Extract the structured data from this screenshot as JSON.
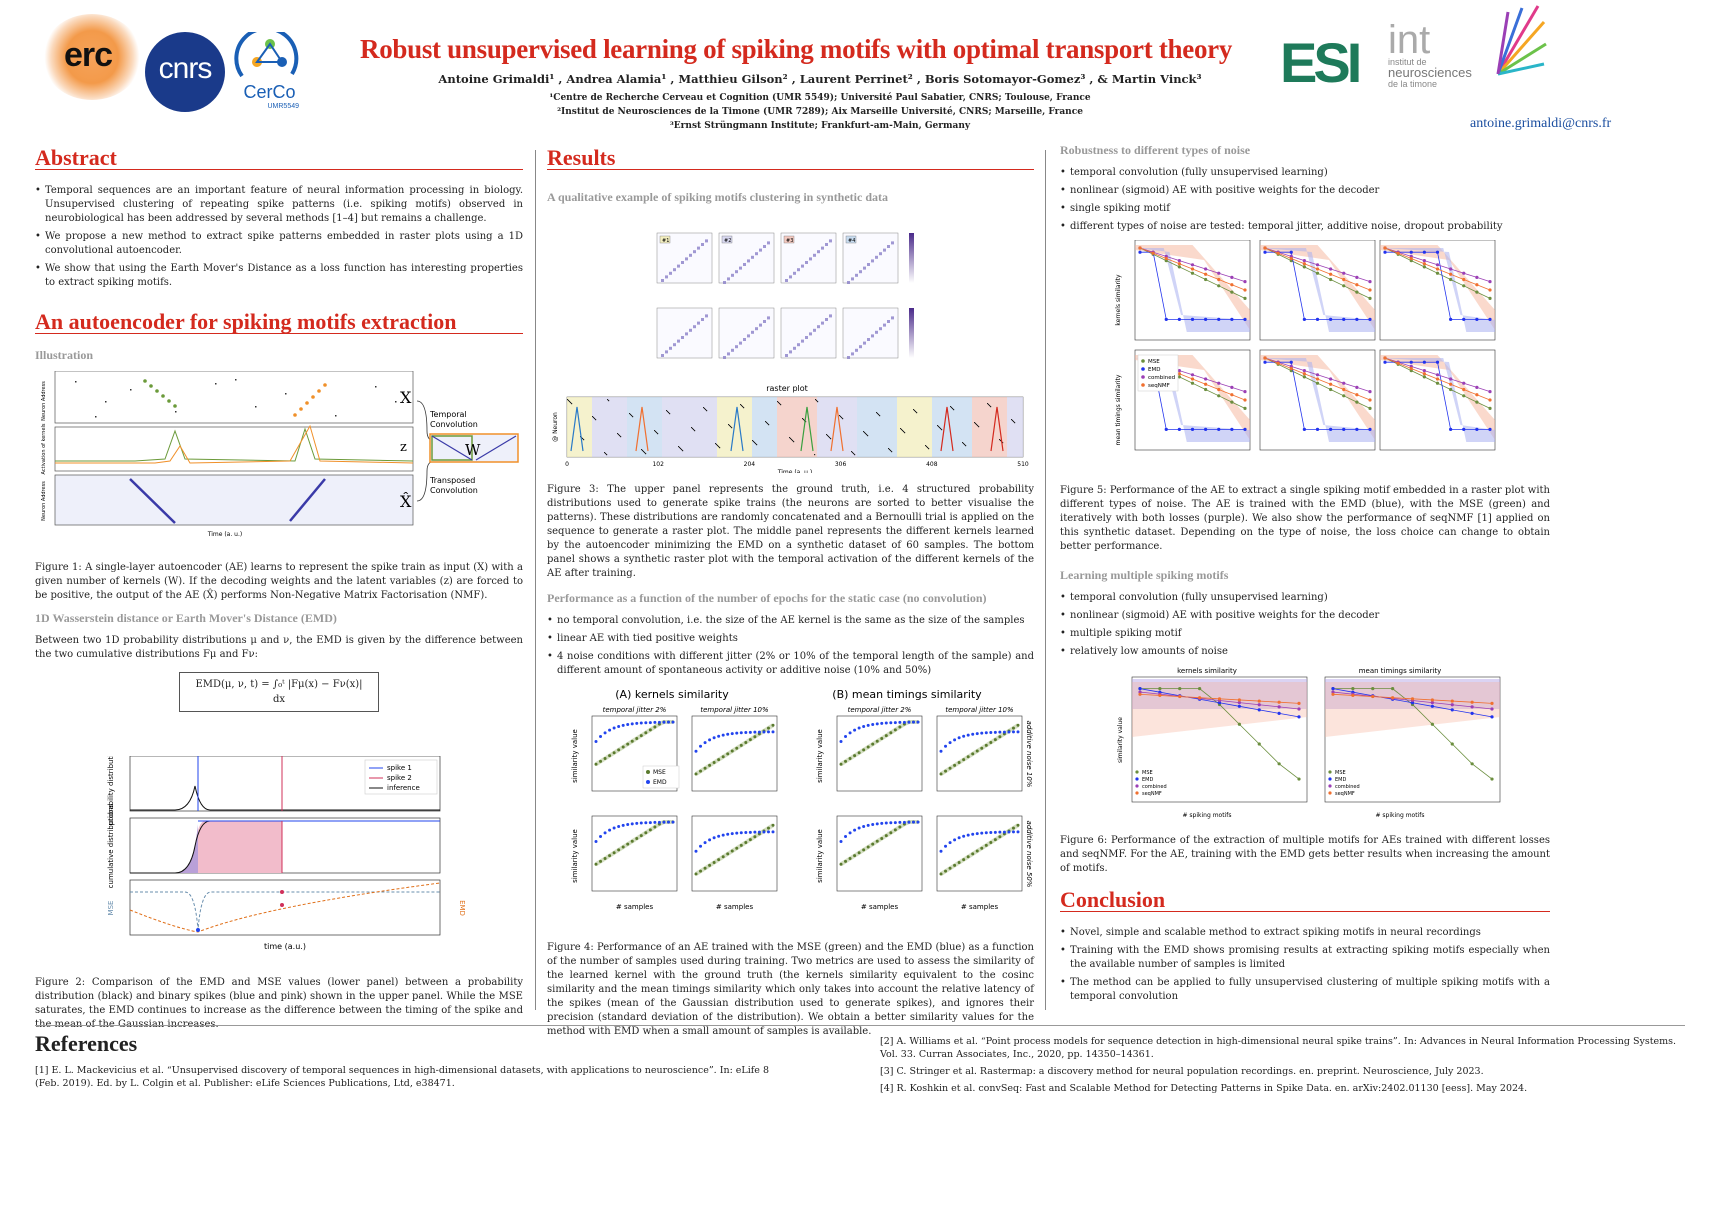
{
  "header": {
    "title": "Robust unsupervised learning of spiking motifs with optimal transport theory",
    "authors": "Antoine Grimaldi¹ ,  Andrea Alamia¹ ,  Matthieu Gilson² ,  Laurent Perrinet² ,  Boris Sotomayor-Gomez³ ,  &  Martin Vinck³",
    "affil1": "¹Centre de Recherche Cerveau et Cognition (UMR 5549); Université Paul Sabatier, CNRS; Toulouse, France",
    "affil2": "²Institut de Neurosciences de la Timone (UMR 7289); Aix Marseille Université, CNRS; Marseille, France",
    "affil3": "³Ernst Strüngmann Institute; Frankfurt-am-Main, Germany",
    "email": "antoine.grimaldi@cnrs.fr",
    "logos": {
      "erc": "erc",
      "cnrs": "cnrs",
      "cerco": "CerCo",
      "cerco_sub": "UMR5549",
      "esi": "ESI",
      "int": "int",
      "int_sub1": "institut de",
      "int_sub2": "neurosciences",
      "int_sub3": "de la timone"
    }
  },
  "abstract": {
    "title": "Abstract",
    "items": [
      "Temporal sequences are an important feature of neural information processing in biology. Unsupervised clustering of repeating spike patterns (i.e. spiking motifs) observed in neurobiological has been addressed by several methods [1–4] but remains a challenge.",
      "We propose a new method to extract spike patterns embedded in raster plots using a 1D convolutional autoencoder.",
      "We show that using the Earth Mover's Distance as a loss function has interesting properties to extract spiking motifs."
    ]
  },
  "autoencoder": {
    "title": "An autoencoder for spiking motifs extraction",
    "illustration": "Illustration",
    "fig1": {
      "X": "X",
      "z": "z",
      "W": "W",
      "Xhat": "X̂",
      "temporal": "Temporal",
      "convolution": "Convolution",
      "transposed": "Transposed",
      "conv2": "Convolution",
      "xlabel": "Time (a. u.)",
      "ylab1": "Neuron Address",
      "ylab2": "Activation of kernels",
      "ylab3": "Neuron Address"
    },
    "fig1_caption": "Figure 1: A single-layer autoencoder (AE) learns to represent the spike train as input (X) with a given number of kernels (W). If the decoding weights and the latent variables (z) are forced to be positive, the output of the AE (X̂) performs Non-Negative Matrix Factorisation (NMF).",
    "emd_title": "1D Wasserstein distance or Earth Mover's Distance (EMD)",
    "emd_text": "Between two 1D probability distributions μ and ν, the EMD is given by the difference between the two cumulative distributions Fμ and Fν:",
    "formula": "EMD(μ, ν, t) = ∫₀ᵗ |Fμ(x) − Fν(x)| dx",
    "fig2_legend": [
      "spike 1",
      "spike 2",
      "inference"
    ],
    "fig2_ylabels": [
      "probability distributions",
      "cumulative distributions",
      "MSE",
      "EMD"
    ],
    "fig2_xlabel": "time (a.u.)",
    "fig2_caption": "Figure 2: Comparison of the EMD and MSE values (lower panel) between a probability distribution (black) and binary spikes (blue and pink) shown in the upper panel. While the MSE saturates, the EMD continues to increase as the difference between the timing of the spike and the mean of the Gaussian increases."
  },
  "results": {
    "title": "Results",
    "qual_title": "A qualitative example of spiking motifs clustering in synthetic data",
    "raster_title": "raster plot",
    "raster_xlabel": "Time (a. u.)",
    "raster_ylabel": "@ Neuron",
    "raster_ticks": [
      "0",
      "102",
      "204",
      "306",
      "408",
      "510"
    ],
    "kernel_labels": [
      "#1",
      "#2",
      "#3",
      "#4"
    ],
    "fig3_caption": "Figure 3: The upper panel represents the ground truth, i.e. 4 structured probability distributions used to generate spike trains (the neurons are sorted to better visualise the patterns). These distributions are randomly concatenated and a Bernoulli trial is applied on the sequence to generate a raster plot. The middle panel represents the different kernels learned by the autoencoder minimizing the EMD on a synthetic dataset of 60 samples. The bottom panel shows a synthetic raster plot with the temporal activation of the different kernels of the AE after training.",
    "perf_title": "Performance as a function of the number of epochs for the static case (no convolution)",
    "perf_items": [
      "no temporal convolution, i.e. the size of the AE kernel is the same as the size of the samples",
      "linear AE with tied positive weights",
      "4 noise conditions with different jitter (2% or 10% of the temporal length of the sample) and different amount of spontaneous activity or additive noise (10% and 50%)"
    ],
    "fig4": {
      "A": "(A) kernels similarity",
      "B": "(B) mean timings similarity",
      "jit2": "temporal jitter 2%",
      "jit10": "temporal jitter 10%",
      "ylabel": "similarity value",
      "xlabel": "# samples",
      "add10": "additive noise 10%",
      "add50": "additive noise 50%",
      "mse": "MSE",
      "emd": "EMD"
    },
    "fig4_caption": "Figure 4: Performance of an AE trained with the MSE (green) and the EMD (blue) as a function of the number of samples used during training. Two metrics are used to assess the similarity of the learned kernel with the ground truth (the kernels similarity equivalent to the cosinc similarity and the mean timings similarity which only takes into account the relative latency of the spikes (mean of the Gaussian distribution used to generate spikes), and ignores their precision (standard deviation of the distribution). We obtain a better similarity values for the method with EMD when a small amount of samples is available."
  },
  "robust": {
    "title": "Robustness to different types of noise",
    "items": [
      "temporal convolution (fully unsupervised learning)",
      "nonlinear (sigmoid) AE with positive weights for the decoder",
      "single spiking motif",
      "different types of noise are tested: temporal jitter, additive noise, dropout probability"
    ],
    "legend": [
      "MSE",
      "EMD",
      "combined",
      "seqNMF"
    ],
    "ylab1": "kernels similarity",
    "ylab2": "mean timings similarity",
    "fig5_caption": "Figure 5: Performance of the AE to extract a single spiking motif embedded in a raster plot with different types of noise. The AE is trained with the EMD (blue), with the MSE (green) and iteratively with both losses (purple). We also show the performance of seqNMF [1] applied on this synthetic dataset. Depending on the type of noise, the loss choice can change to obtain better performance."
  },
  "multiple": {
    "title": "Learning multiple spiking motifs",
    "items": [
      "temporal convolution (fully unsupervised learning)",
      "nonlinear (sigmoid) AE with positive weights for the decoder",
      "multiple spiking motif",
      "relatively low amounts of noise"
    ],
    "panel1": "kernels similarity",
    "panel2": "mean timings similarity",
    "ylabel": "similarity value",
    "xlabel": "# spiking motifs",
    "fig6_caption": "Figure 6: Performance of the extraction of multiple motifs for AEs trained with different losses and seqNMF. For the AE, training with the EMD gets better results when increasing the amount of motifs."
  },
  "conclusion": {
    "title": "Conclusion",
    "items": [
      "Novel, simple and scalable method to extract spiking motifs in neural recordings",
      "Training with the EMD shows promising results at extracting spiking motifs especially when the available number of samples is limited",
      "The method can be applied to fully unsupervised clustering of multiple spiking motifs with a temporal convolution"
    ]
  },
  "references": {
    "title": "References",
    "r1": "[1]  E. L. Mackevicius et al. “Unsupervised discovery of temporal sequences in high-dimensional datasets, with applications to neuroscience”. In: eLife 8 (Feb. 2019). Ed. by L. Colgin et al. Publisher: eLife Sciences Publications, Ltd, e38471.",
    "r2": "[2]  A. Williams et al. “Point process models for sequence detection in high-dimensional neural spike trains”. In: Advances in Neural Information Processing Systems. Vol. 33. Curran Associates, Inc., 2020, pp. 14350–14361.",
    "r3": "[3]  C. Stringer et al. Rastermap: a discovery method for neural population recordings. en. preprint. Neuroscience, July 2023.",
    "r4": "[4]  R. Koshkin et al. convSeq: Fast and Scalable Method for Detecting Patterns in Spike Data. en. arXiv:2402.01130 [eess]. May 2024."
  },
  "colors": {
    "red": "#d42a1e",
    "blue": "#2233ee",
    "green": "#6b8e3e",
    "orange": "#f07030",
    "purple": "#9b3fb5"
  }
}
